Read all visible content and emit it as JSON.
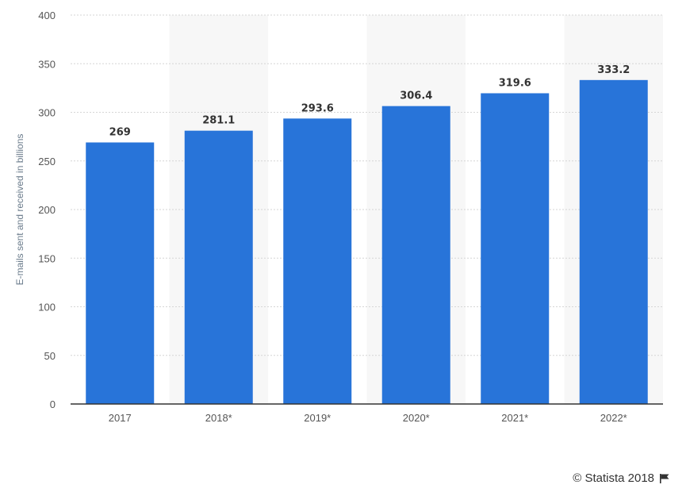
{
  "chart_data": {
    "type": "bar",
    "categories": [
      "2017",
      "2018*",
      "2019*",
      "2020*",
      "2021*",
      "2022*"
    ],
    "values": [
      269,
      281.1,
      293.6,
      306.4,
      319.6,
      333.2
    ],
    "value_labels": [
      "269",
      "281.1",
      "293.6",
      "306.4",
      "319.6",
      "333.2"
    ],
    "title": "",
    "xlabel": "",
    "ylabel": "E-mails sent and received in billions",
    "ylim": [
      0,
      400
    ],
    "yticks": [
      0,
      50,
      100,
      150,
      200,
      250,
      300,
      350,
      400
    ],
    "grid": true,
    "bar_color": "#2874d9",
    "band_color": "#f7f7f7"
  },
  "credit": {
    "text": "© Statista 2018",
    "icon": "flag-icon"
  }
}
